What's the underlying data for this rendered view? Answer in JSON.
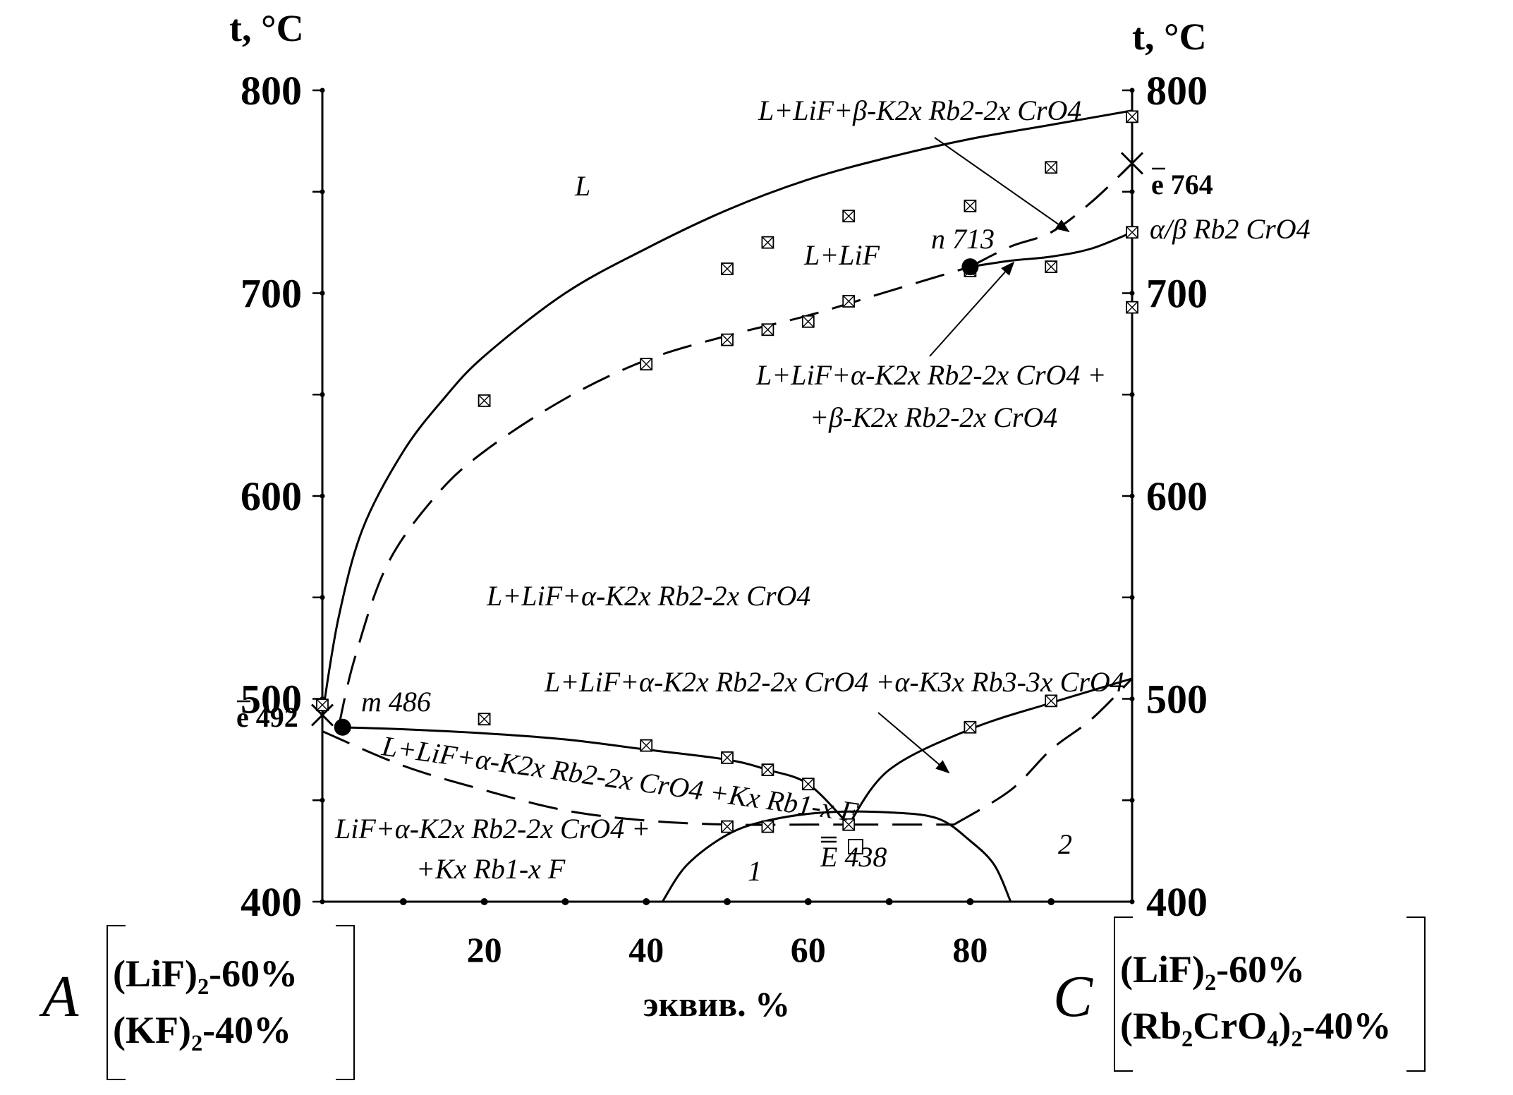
{
  "chart_data": {
    "type": "line",
    "x_axis": {
      "label": "эквив. %",
      "range": [
        0,
        100
      ],
      "ticks": [
        20,
        40,
        60,
        80
      ]
    },
    "y_axis_left": {
      "label": "t, °C",
      "range": [
        400,
        800
      ],
      "ticks": [
        400,
        500,
        600,
        700,
        800
      ]
    },
    "y_axis_right": {
      "label": "t, °C",
      "ticks": [
        400,
        500,
        600,
        700,
        800
      ]
    },
    "component_left": {
      "symbol": "A",
      "line1": "(LiF)₂-60%",
      "line2": "(KF)₂-40%"
    },
    "component_right": {
      "symbol": "C",
      "line1": "(LiF)₂-60%",
      "line2": "(Rb₂CrO₄)₂-40%"
    },
    "series": [
      {
        "style": "solid",
        "points": [
          [
            0,
            492
          ],
          [
            2,
            540
          ],
          [
            5,
            584
          ],
          [
            10,
            622
          ],
          [
            15,
            648
          ],
          [
            20,
            669
          ],
          [
            30,
            700
          ],
          [
            40,
            722
          ],
          [
            50,
            741
          ],
          [
            60,
            756
          ],
          [
            70,
            767
          ],
          [
            80,
            776
          ],
          [
            90,
            783
          ],
          [
            100,
            790
          ]
        ]
      },
      {
        "style": "dashed",
        "points": [
          [
            2,
            486
          ],
          [
            4,
            520
          ],
          [
            8,
            566
          ],
          [
            14,
            600
          ],
          [
            20,
            622
          ],
          [
            30,
            648
          ],
          [
            40,
            667
          ],
          [
            50,
            679
          ],
          [
            60,
            689
          ],
          [
            70,
            701
          ],
          [
            80,
            713
          ]
        ]
      },
      {
        "style": "solid",
        "points": [
          [
            80,
            713
          ],
          [
            85,
            716
          ],
          [
            90,
            718
          ],
          [
            95,
            722
          ],
          [
            100,
            730
          ]
        ]
      },
      {
        "style": "dashed",
        "points": [
          [
            80,
            713
          ],
          [
            85,
            723
          ],
          [
            90,
            730
          ],
          [
            95,
            745
          ],
          [
            100,
            764
          ]
        ]
      },
      {
        "style": "dashed",
        "points": [
          [
            0,
            484
          ],
          [
            10,
            467
          ],
          [
            20,
            455
          ],
          [
            30,
            445
          ],
          [
            40,
            440
          ],
          [
            50,
            438
          ],
          [
            60,
            438
          ],
          [
            65,
            438
          ]
        ]
      },
      {
        "style": "solid",
        "points": [
          [
            2,
            486
          ],
          [
            10,
            485
          ],
          [
            20,
            483
          ],
          [
            30,
            480
          ],
          [
            40,
            475
          ],
          [
            50,
            470
          ],
          [
            55,
            465
          ],
          [
            60,
            458
          ],
          [
            65,
            438
          ]
        ]
      },
      {
        "style": "solid",
        "points": [
          [
            65,
            438
          ],
          [
            70,
            465
          ],
          [
            80,
            485
          ],
          [
            90,
            498
          ],
          [
            100,
            510
          ]
        ]
      },
      {
        "style": "dashed",
        "points": [
          [
            65,
            438
          ],
          [
            78,
            438
          ]
        ]
      },
      {
        "style": "dashed",
        "points": [
          [
            78,
            438
          ],
          [
            85,
            455
          ],
          [
            90,
            475
          ],
          [
            95,
            490
          ],
          [
            100,
            510
          ]
        ]
      },
      {
        "style": "solid",
        "points": [
          [
            42,
            400
          ],
          [
            45,
            418
          ],
          [
            50,
            433
          ],
          [
            55,
            440
          ],
          [
            62,
            444
          ],
          [
            70,
            444
          ],
          [
            76,
            441
          ],
          [
            80,
            430
          ],
          [
            83,
            418
          ],
          [
            85,
            400
          ]
        ]
      }
    ],
    "experimental_points": [
      [
        0,
        497
      ],
      [
        20,
        490
      ],
      [
        20,
        647
      ],
      [
        40,
        665
      ],
      [
        40,
        477
      ],
      [
        50,
        471
      ],
      [
        50,
        677
      ],
      [
        50,
        712
      ],
      [
        50,
        437
      ],
      [
        55,
        465
      ],
      [
        55,
        437
      ],
      [
        55,
        725
      ],
      [
        55,
        682
      ],
      [
        60,
        686
      ],
      [
        60,
        458
      ],
      [
        65,
        438
      ],
      [
        65,
        696
      ],
      [
        65,
        738
      ],
      [
        80,
        486
      ],
      [
        80,
        711
      ],
      [
        80,
        743
      ],
      [
        90,
        499
      ],
      [
        90,
        713
      ],
      [
        90,
        762
      ],
      [
        100,
        730
      ],
      [
        100,
        693
      ],
      [
        100,
        787
      ]
    ],
    "special_points": [
      {
        "label": "m 486",
        "x": 2.5,
        "y": 486
      },
      {
        "label": "n 713",
        "x": 80,
        "y": 713
      },
      {
        "label": "e 764",
        "x": 100,
        "y": 764
      },
      {
        "label": "e 492",
        "x": 0,
        "y": 492
      },
      {
        "label": "E 438",
        "x": 66.5,
        "y": 432
      }
    ],
    "regions": [
      {
        "text": "L"
      },
      {
        "text": "L+LiF"
      },
      {
        "text": "L+LiF+β-K2x Rb2-2x CrO4"
      },
      {
        "text": "α/β Rb2 CrO4"
      },
      {
        "text": "L+LiF+α-K2x Rb2-2x CrO4 +"
      },
      {
        "text": "+β-K2x Rb2-2x CrO4"
      },
      {
        "text": "L+LiF+α-K2x Rb2-2x CrO4"
      },
      {
        "text": "L+LiF+α-K2x Rb2-2x CrO4 +α-K3x Rb3-3x CrO4"
      },
      {
        "text": "L+LiF+α-K2x Rb2-2x CrO4 +Kx Rb1-x F"
      },
      {
        "text": "LiF+α-K2x Rb2-2x CrO4 +"
      },
      {
        "text": "+Kx Rb1-x F"
      },
      {
        "text": "1"
      },
      {
        "text": "2"
      }
    ]
  }
}
